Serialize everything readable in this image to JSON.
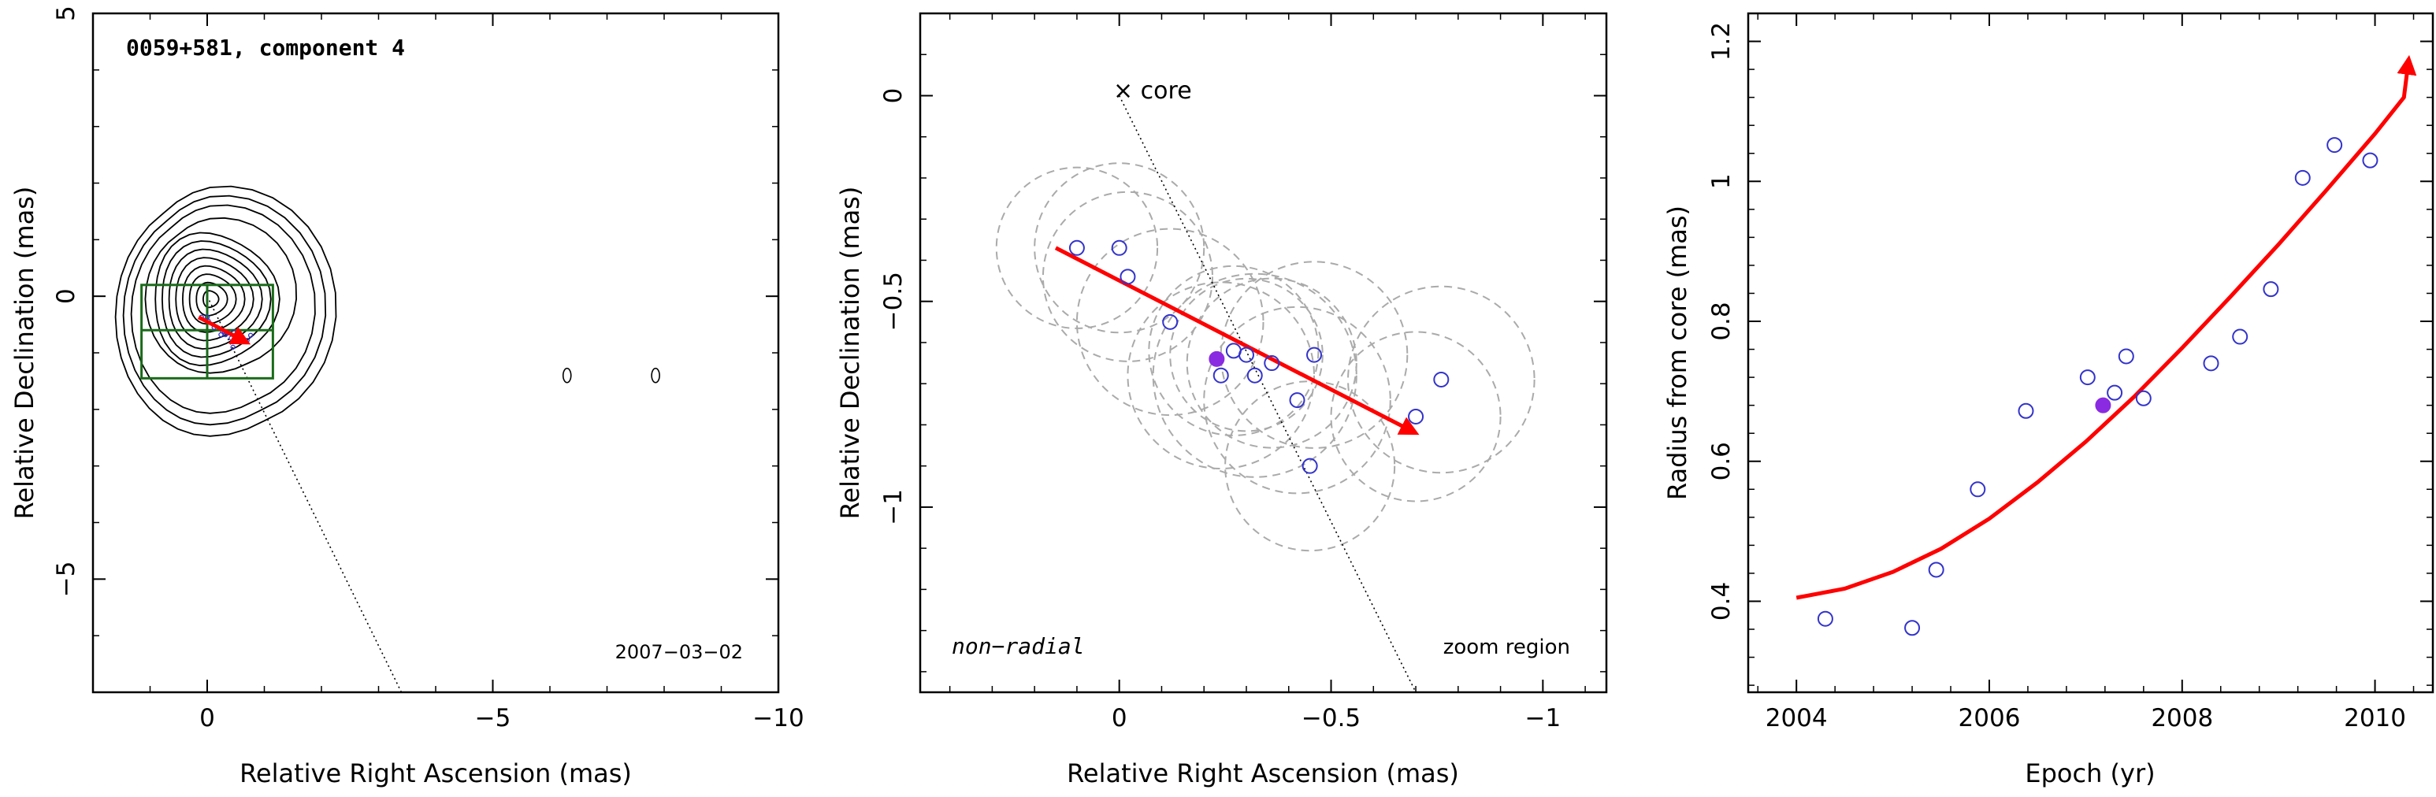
{
  "chart_data": [
    {
      "type": "contour",
      "title": "0059+581, component 4",
      "annotation": "2007−03−02",
      "xlabel": "Relative Right Ascension (mas)",
      "ylabel": "Relative Declination (mas)",
      "xlim": [
        2,
        -10
      ],
      "ylim": [
        -7,
        5
      ],
      "xticks": [
        0,
        -5,
        -10
      ],
      "xtick_labels": [
        "0",
        "−5",
        "−10"
      ],
      "yticks": [
        -5,
        0,
        5
      ],
      "ytick_labels": [
        "−5",
        "0",
        "5"
      ],
      "line_color": "#000000",
      "box_color": "#1a6b1a",
      "arrow_color": "#ff0000",
      "point_color": "#3333cc",
      "zoom_box": {
        "x": [
          1.15,
          -1.15
        ],
        "y": [
          0.2,
          -1.45
        ]
      },
      "zoom_box_dividers": {
        "x": [
          0
        ],
        "y": [
          -0.6
        ]
      },
      "arrow": {
        "from": [
          0.15,
          -0.37
        ],
        "to": [
          -0.7,
          -0.82
        ]
      },
      "points": [
        [
          0.1,
          -0.37
        ],
        [
          0.0,
          -0.37
        ],
        [
          -0.02,
          -0.44
        ],
        [
          -0.12,
          -0.55
        ],
        [
          -0.24,
          -0.68
        ],
        [
          -0.27,
          -0.62
        ],
        [
          -0.3,
          -0.63
        ],
        [
          -0.32,
          -0.68
        ],
        [
          -0.36,
          -0.65
        ],
        [
          -0.42,
          -0.74
        ],
        [
          -0.45,
          -0.9
        ],
        [
          -0.46,
          -0.63
        ],
        [
          -0.7,
          -0.78
        ],
        [
          -0.76,
          -0.69
        ]
      ],
      "direction_line": {
        "from": [
          0,
          0
        ],
        "to": [
          -3.4,
          -7
        ]
      },
      "secondary_contours": [
        [
          -6.3,
          -1.4
        ],
        [
          -7.85,
          -1.4
        ]
      ]
    },
    {
      "type": "scatter",
      "title": "",
      "labels": {
        "core": "× core",
        "mode": "non−radial",
        "region": "zoom region"
      },
      "xlabel": "Relative Right Ascension (mas)",
      "ylabel": "Relative Declination (mas)",
      "xlim": [
        0.47,
        -1.15
      ],
      "ylim": [
        -1.45,
        0.2
      ],
      "xticks": [
        0,
        -0.5,
        -1
      ],
      "xtick_labels": [
        "0",
        "−0.5",
        "−1"
      ],
      "yticks": [
        -1,
        -0.5,
        0
      ],
      "ytick_labels": [
        "−1",
        "−0.5",
        "0"
      ],
      "point_color": "#3333cc",
      "highlight_color": "#8a2be2",
      "circle_color": "#aaaaaa",
      "arrow_color": "#ff0000",
      "points": [
        {
          "ra": 0.1,
          "dec": -0.37,
          "r": 0.19
        },
        {
          "ra": 0.0,
          "dec": -0.37,
          "r": 0.2
        },
        {
          "ra": -0.02,
          "dec": -0.44,
          "r": 0.2
        },
        {
          "ra": -0.12,
          "dec": -0.55,
          "r": 0.22
        },
        {
          "ra": -0.24,
          "dec": -0.68,
          "r": 0.22
        },
        {
          "ra": -0.27,
          "dec": -0.62,
          "r": 0.2
        },
        {
          "ra": -0.3,
          "dec": -0.63,
          "r": 0.18
        },
        {
          "ra": -0.32,
          "dec": -0.68,
          "r": 0.24
        },
        {
          "ra": -0.36,
          "dec": -0.65,
          "r": 0.2
        },
        {
          "ra": -0.42,
          "dec": -0.74,
          "r": 0.22
        },
        {
          "ra": -0.45,
          "dec": -0.9,
          "r": 0.2
        },
        {
          "ra": -0.46,
          "dec": -0.63,
          "r": 0.22
        },
        {
          "ra": -0.7,
          "dec": -0.78,
          "r": 0.2
        },
        {
          "ra": -0.76,
          "dec": -0.69,
          "r": 0.22
        }
      ],
      "highlight_point": {
        "ra": -0.23,
        "dec": -0.64
      },
      "arrow": {
        "from": [
          0.15,
          -0.37
        ],
        "to": [
          -0.7,
          -0.82
        ]
      },
      "direction_line": {
        "from": [
          0,
          0
        ],
        "to": [
          -0.7,
          -1.45
        ]
      }
    },
    {
      "type": "scatter",
      "title": "",
      "xlabel": "Epoch (yr)",
      "ylabel": "Radius from core (mas)",
      "xlim": [
        2003.5,
        2010.6
      ],
      "ylim": [
        0.27,
        1.24
      ],
      "xticks": [
        2004,
        2006,
        2008,
        2010
      ],
      "xtick_labels": [
        "2004",
        "2006",
        "2008",
        "2010"
      ],
      "yticks": [
        0.4,
        0.6,
        0.8,
        1.0,
        1.2
      ],
      "ytick_labels": [
        "0.4",
        "0.6",
        "0.8",
        "1",
        "1.2"
      ],
      "point_color": "#3333cc",
      "highlight_color": "#8a2be2",
      "fit_color": "#ff0000",
      "x": [
        2004.3,
        2005.2,
        2005.45,
        2005.88,
        2006.38,
        2007.02,
        2007.3,
        2007.42,
        2007.6,
        2008.3,
        2008.6,
        2008.92,
        2009.25,
        2009.58,
        2009.95
      ],
      "y": [
        0.375,
        0.362,
        0.445,
        0.56,
        0.672,
        0.72,
        0.698,
        0.75,
        0.69,
        0.74,
        0.778,
        0.846,
        1.005,
        1.052,
        1.03
      ],
      "highlight_point": {
        "x": 2007.18,
        "y": 0.68
      },
      "fit_curve": {
        "x": [
          2004.0,
          2004.5,
          2005.0,
          2005.5,
          2006.0,
          2006.5,
          2007.0,
          2007.5,
          2008.0,
          2008.5,
          2009.0,
          2009.5,
          2010.0,
          2010.3
        ],
        "y": [
          0.405,
          0.418,
          0.442,
          0.475,
          0.518,
          0.57,
          0.628,
          0.692,
          0.762,
          0.835,
          0.91,
          0.988,
          1.068,
          1.12
        ],
        "arrow_to": [
          2010.35,
          1.175
        ]
      }
    }
  ]
}
